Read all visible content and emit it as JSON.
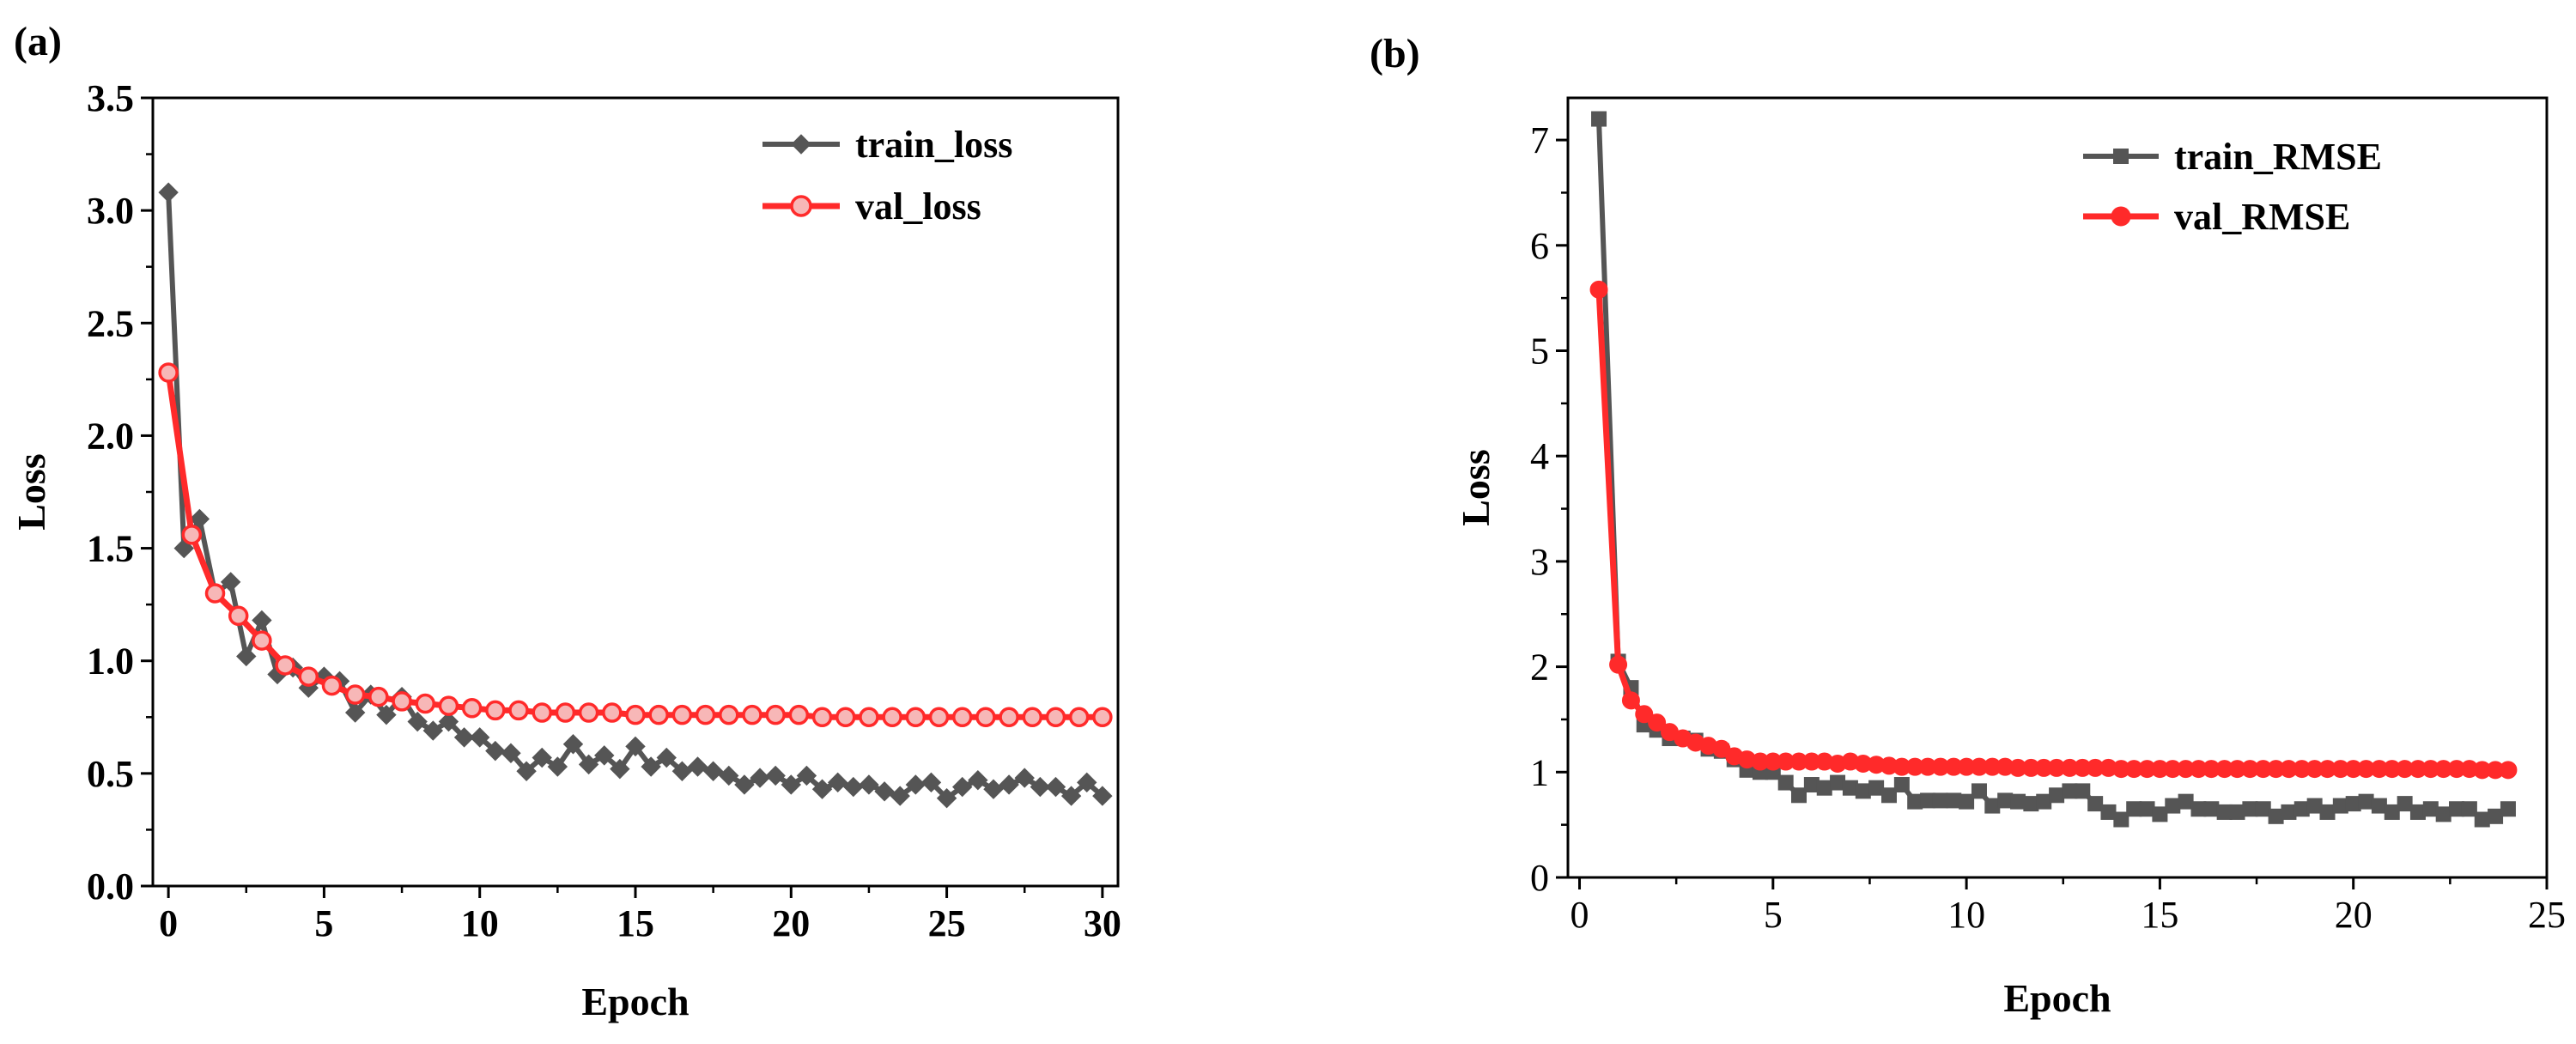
{
  "figure": {
    "panel_a_label": "(a)",
    "panel_b_label": "(b)"
  },
  "colors": {
    "train": "#555555",
    "val": "#ff2a2a",
    "val_marker_fill": "#f7b7b7"
  },
  "chart_data": [
    {
      "panel": "(a)",
      "type": "line",
      "xlabel": "Epoch",
      "ylabel": "Loss",
      "xlim": [
        -0.5,
        30.5
      ],
      "ylim": [
        0,
        3.5
      ],
      "xticks": [
        0,
        5,
        10,
        15,
        20,
        25,
        30
      ],
      "xtick_labels": [
        "0",
        "5",
        "10",
        "15",
        "20",
        "25",
        "30"
      ],
      "yticks": [
        0,
        0.5,
        1.0,
        1.5,
        2.0,
        2.5,
        3.0,
        3.5
      ],
      "ytick_labels": [
        "0.0",
        "0.5",
        "1.0",
        "1.5",
        "2.0",
        "2.5",
        "3.0",
        "3.5"
      ],
      "legend_position": "top-right",
      "series": [
        {
          "name": "train_loss",
          "marker": "diamond",
          "x": [
            0,
            0.5,
            1,
            1.5,
            2,
            2.5,
            3,
            3.5,
            4,
            4.5,
            5,
            5.5,
            6,
            6.5,
            7,
            7.5,
            8,
            8.5,
            9,
            9.5,
            10,
            10.5,
            11,
            11.5,
            12,
            12.5,
            13,
            13.5,
            14,
            14.5,
            15,
            15.5,
            16,
            16.5,
            17,
            17.5,
            18,
            18.5,
            19,
            19.5,
            20,
            20.5,
            21,
            21.5,
            22,
            22.5,
            23,
            23.5,
            24,
            24.5,
            25,
            25.5,
            26,
            26.5,
            27,
            27.5,
            28,
            28.5,
            29,
            29.5,
            30
          ],
          "values": [
            3.08,
            1.5,
            1.63,
            1.3,
            1.35,
            1.02,
            1.18,
            0.94,
            0.97,
            0.88,
            0.93,
            0.91,
            0.77,
            0.85,
            0.76,
            0.84,
            0.73,
            0.69,
            0.73,
            0.66,
            0.66,
            0.6,
            0.59,
            0.51,
            0.57,
            0.53,
            0.63,
            0.54,
            0.58,
            0.52,
            0.62,
            0.53,
            0.57,
            0.51,
            0.53,
            0.51,
            0.49,
            0.45,
            0.48,
            0.49,
            0.45,
            0.49,
            0.43,
            0.46,
            0.44,
            0.45,
            0.42,
            0.4,
            0.45,
            0.46,
            0.39,
            0.44,
            0.47,
            0.43,
            0.45,
            0.48,
            0.44,
            0.44,
            0.4,
            0.46,
            0.4
          ]
        },
        {
          "name": "val_loss",
          "marker": "circle",
          "x": [
            0,
            0.75,
            1.5,
            2.25,
            3,
            3.75,
            4.5,
            5.25,
            6,
            6.75,
            7.5,
            8.25,
            9,
            9.75,
            10.5,
            11.25,
            12,
            12.75,
            13.5,
            14.25,
            15,
            15.75,
            16.5,
            17.25,
            18,
            18.75,
            19.5,
            20.25,
            21,
            21.75,
            22.5,
            23.25,
            24,
            24.75,
            25.5,
            26.25,
            27,
            27.75,
            28.5,
            29.25,
            30
          ],
          "values": [
            2.28,
            1.56,
            1.3,
            1.2,
            1.09,
            0.98,
            0.93,
            0.89,
            0.85,
            0.84,
            0.82,
            0.81,
            0.8,
            0.79,
            0.78,
            0.78,
            0.77,
            0.77,
            0.77,
            0.77,
            0.76,
            0.76,
            0.76,
            0.76,
            0.76,
            0.76,
            0.76,
            0.76,
            0.75,
            0.75,
            0.75,
            0.75,
            0.75,
            0.75,
            0.75,
            0.75,
            0.75,
            0.75,
            0.75,
            0.75,
            0.75
          ]
        }
      ]
    },
    {
      "panel": "(b)",
      "type": "line",
      "xlabel": "Epoch",
      "ylabel": "Loss",
      "xlim": [
        -0.3,
        25
      ],
      "ylim": [
        0,
        7.4
      ],
      "xticks": [
        0,
        5,
        10,
        15,
        20,
        25
      ],
      "xtick_labels": [
        "0",
        "5",
        "10",
        "15",
        "20",
        "25"
      ],
      "yticks": [
        0,
        1,
        2,
        3,
        4,
        5,
        6,
        7
      ],
      "ytick_labels": [
        "0",
        "1",
        "2",
        "3",
        "4",
        "5",
        "6",
        "7"
      ],
      "legend_position": "top-right",
      "series": [
        {
          "name": "train_RMSE",
          "marker": "square",
          "x": [
            0.5,
            1,
            1.33,
            1.67,
            2,
            2.33,
            2.67,
            3,
            3.33,
            3.67,
            4,
            4.33,
            4.67,
            5,
            5.33,
            5.67,
            6,
            6.33,
            6.67,
            7,
            7.33,
            7.67,
            8,
            8.33,
            8.67,
            9,
            9.33,
            9.67,
            10,
            10.33,
            10.67,
            11,
            11.33,
            11.67,
            12,
            12.33,
            12.67,
            13,
            13.33,
            13.67,
            14,
            14.33,
            14.67,
            15,
            15.33,
            15.67,
            16,
            16.33,
            16.67,
            17,
            17.33,
            17.67,
            18,
            18.33,
            18.67,
            19,
            19.33,
            19.67,
            20,
            20.33,
            20.67,
            21,
            21.33,
            21.67,
            22,
            22.33,
            22.67,
            23,
            23.33,
            23.67,
            24
          ],
          "values": [
            7.2,
            2.05,
            1.8,
            1.45,
            1.4,
            1.32,
            1.32,
            1.3,
            1.22,
            1.2,
            1.12,
            1.02,
            1.0,
            1.0,
            0.9,
            0.78,
            0.88,
            0.85,
            0.9,
            0.85,
            0.82,
            0.85,
            0.78,
            0.88,
            0.72,
            0.73,
            0.73,
            0.73,
            0.72,
            0.82,
            0.68,
            0.73,
            0.72,
            0.7,
            0.72,
            0.78,
            0.82,
            0.82,
            0.7,
            0.62,
            0.55,
            0.65,
            0.65,
            0.6,
            0.68,
            0.72,
            0.65,
            0.65,
            0.62,
            0.62,
            0.65,
            0.65,
            0.58,
            0.62,
            0.65,
            0.68,
            0.62,
            0.68,
            0.7,
            0.72,
            0.68,
            0.62,
            0.7,
            0.62,
            0.65,
            0.6,
            0.65,
            0.65,
            0.55,
            0.58,
            0.65
          ]
        },
        {
          "name": "val_RMSE",
          "marker": "circle",
          "x": [
            0.5,
            1,
            1.33,
            1.67,
            2,
            2.33,
            2.67,
            3,
            3.33,
            3.67,
            4,
            4.33,
            4.67,
            5,
            5.33,
            5.67,
            6,
            6.33,
            6.67,
            7,
            7.33,
            7.67,
            8,
            8.33,
            8.67,
            9,
            9.33,
            9.67,
            10,
            10.33,
            10.67,
            11,
            11.33,
            11.67,
            12,
            12.33,
            12.67,
            13,
            13.33,
            13.67,
            14,
            14.33,
            14.67,
            15,
            15.33,
            15.67,
            16,
            16.33,
            16.67,
            17,
            17.33,
            17.67,
            18,
            18.33,
            18.67,
            19,
            19.33,
            19.67,
            20,
            20.33,
            20.67,
            21,
            21.33,
            21.67,
            22,
            22.33,
            22.67,
            23,
            23.33,
            23.67,
            24
          ],
          "values": [
            5.58,
            2.02,
            1.68,
            1.55,
            1.47,
            1.38,
            1.32,
            1.28,
            1.25,
            1.22,
            1.15,
            1.12,
            1.1,
            1.1,
            1.1,
            1.1,
            1.1,
            1.1,
            1.08,
            1.1,
            1.08,
            1.07,
            1.06,
            1.05,
            1.05,
            1.05,
            1.05,
            1.05,
            1.05,
            1.05,
            1.05,
            1.05,
            1.04,
            1.04,
            1.04,
            1.04,
            1.04,
            1.04,
            1.04,
            1.04,
            1.03,
            1.03,
            1.03,
            1.03,
            1.03,
            1.03,
            1.03,
            1.03,
            1.03,
            1.03,
            1.03,
            1.03,
            1.03,
            1.03,
            1.03,
            1.03,
            1.03,
            1.03,
            1.03,
            1.03,
            1.03,
            1.03,
            1.03,
            1.03,
            1.03,
            1.03,
            1.03,
            1.03,
            1.02,
            1.02,
            1.02
          ]
        }
      ]
    }
  ]
}
